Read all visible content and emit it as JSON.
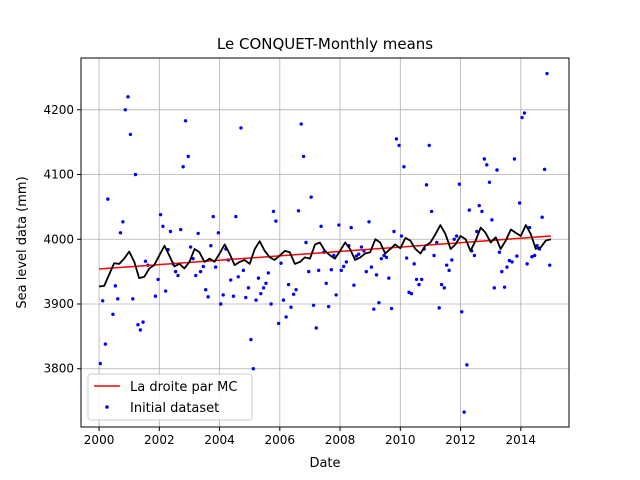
{
  "chart_data": {
    "type": "scatter",
    "title": "Le CONQUET-Monthly means",
    "xlabel": "Date",
    "ylabel": "Sea level data (mm)",
    "xlim": [
      1999.4,
      2015.6
    ],
    "ylim": [
      3710,
      4280
    ],
    "xticks": [
      2000,
      2002,
      2004,
      2006,
      2008,
      2010,
      2012,
      2014
    ],
    "yticks": [
      3800,
      3900,
      4000,
      4100,
      4200
    ],
    "grid": true,
    "legend_position": "lower-left",
    "colors": {
      "points": "#0000ff",
      "trend": "#ff0000",
      "fit": "#000000",
      "grid": "#b0b0b0"
    },
    "series": [
      {
        "name": "Initial dataset",
        "kind": "scatter",
        "points": [
          [
            2000.04,
            3808
          ],
          [
            2000.12,
            3905
          ],
          [
            2000.21,
            3838
          ],
          [
            2000.29,
            4062
          ],
          [
            2000.46,
            3884
          ],
          [
            2000.54,
            3928
          ],
          [
            2000.62,
            3908
          ],
          [
            2000.71,
            4010
          ],
          [
            2000.79,
            4027
          ],
          [
            2000.87,
            4200
          ],
          [
            2000.96,
            4220
          ],
          [
            2001.04,
            4162
          ],
          [
            2001.12,
            3908
          ],
          [
            2001.21,
            4100
          ],
          [
            2001.29,
            3868
          ],
          [
            2001.37,
            3860
          ],
          [
            2001.46,
            3872
          ],
          [
            2001.54,
            3966
          ],
          [
            2001.62,
            3960
          ],
          [
            2001.87,
            3912
          ],
          [
            2001.96,
            3938
          ],
          [
            2002.04,
            4038
          ],
          [
            2002.12,
            4020
          ],
          [
            2002.21,
            3920
          ],
          [
            2002.29,
            3984
          ],
          [
            2002.37,
            4012
          ],
          [
            2002.46,
            3962
          ],
          [
            2002.54,
            3950
          ],
          [
            2002.62,
            3944
          ],
          [
            2002.71,
            4015
          ],
          [
            2002.79,
            4112
          ],
          [
            2002.87,
            4183
          ],
          [
            2002.96,
            4128
          ],
          [
            2003.04,
            3988
          ],
          [
            2003.12,
            3970
          ],
          [
            2003.21,
            3944
          ],
          [
            2003.29,
            4009
          ],
          [
            2003.37,
            3950
          ],
          [
            2003.46,
            3958
          ],
          [
            2003.54,
            3922
          ],
          [
            2003.62,
            3911
          ],
          [
            2003.71,
            3990
          ],
          [
            2003.79,
            4035
          ],
          [
            2003.87,
            3957
          ],
          [
            2003.96,
            4010
          ],
          [
            2004.04,
            3900
          ],
          [
            2004.12,
            3914
          ],
          [
            2004.21,
            3985
          ],
          [
            2004.29,
            3968
          ],
          [
            2004.37,
            3937
          ],
          [
            2004.46,
            3912
          ],
          [
            2004.54,
            4035
          ],
          [
            2004.62,
            3942
          ],
          [
            2004.71,
            4172
          ],
          [
            2004.79,
            3952
          ],
          [
            2004.87,
            3910
          ],
          [
            2004.96,
            3925
          ],
          [
            2005.04,
            3845
          ],
          [
            2005.12,
            3800
          ],
          [
            2005.21,
            3906
          ],
          [
            2005.29,
            3940
          ],
          [
            2005.37,
            3916
          ],
          [
            2005.46,
            3925
          ],
          [
            2005.54,
            3932
          ],
          [
            2005.62,
            3948
          ],
          [
            2005.71,
            3900
          ],
          [
            2005.79,
            4043
          ],
          [
            2005.87,
            4028
          ],
          [
            2005.96,
            3870
          ],
          [
            2006.04,
            3963
          ],
          [
            2006.12,
            3906
          ],
          [
            2006.21,
            3880
          ],
          [
            2006.29,
            3930
          ],
          [
            2006.37,
            3895
          ],
          [
            2006.46,
            3915
          ],
          [
            2006.54,
            3922
          ],
          [
            2006.62,
            4044
          ],
          [
            2006.71,
            4178
          ],
          [
            2006.79,
            4128
          ],
          [
            2006.87,
            3995
          ],
          [
            2006.96,
            3950
          ],
          [
            2007.04,
            4065
          ],
          [
            2007.12,
            3898
          ],
          [
            2007.21,
            3863
          ],
          [
            2007.29,
            3952
          ],
          [
            2007.37,
            4020
          ],
          [
            2007.46,
            3980
          ],
          [
            2007.54,
            3932
          ],
          [
            2007.62,
            3896
          ],
          [
            2007.71,
            3953
          ],
          [
            2007.79,
            3975
          ],
          [
            2007.87,
            3914
          ],
          [
            2007.96,
            4022
          ],
          [
            2008.04,
            3952
          ],
          [
            2008.12,
            3958
          ],
          [
            2008.21,
            3965
          ],
          [
            2008.29,
            3990
          ],
          [
            2008.37,
            4018
          ],
          [
            2008.46,
            3929
          ],
          [
            2008.54,
            3974
          ],
          [
            2008.62,
            3977
          ],
          [
            2008.71,
            3988
          ],
          [
            2008.79,
            3982
          ],
          [
            2008.87,
            3950
          ],
          [
            2008.96,
            4027
          ],
          [
            2009.04,
            3957
          ],
          [
            2009.12,
            3892
          ],
          [
            2009.21,
            3945
          ],
          [
            2009.29,
            3902
          ],
          [
            2009.37,
            3970
          ],
          [
            2009.46,
            3975
          ],
          [
            2009.54,
            3972
          ],
          [
            2009.62,
            3940
          ],
          [
            2009.71,
            3893
          ],
          [
            2009.79,
            4012
          ],
          [
            2009.87,
            4155
          ],
          [
            2009.96,
            4145
          ],
          [
            2010.04,
            4005
          ],
          [
            2010.12,
            4112
          ],
          [
            2010.21,
            3971
          ],
          [
            2010.29,
            3918
          ],
          [
            2010.37,
            3916
          ],
          [
            2010.46,
            3962
          ],
          [
            2010.54,
            3938
          ],
          [
            2010.62,
            3930
          ],
          [
            2010.71,
            3938
          ],
          [
            2010.79,
            3985
          ],
          [
            2010.87,
            4084
          ],
          [
            2010.96,
            4145
          ],
          [
            2011.04,
            4043
          ],
          [
            2011.12,
            3975
          ],
          [
            2011.21,
            3995
          ],
          [
            2011.29,
            3894
          ],
          [
            2011.37,
            3930
          ],
          [
            2011.46,
            3925
          ],
          [
            2011.54,
            3960
          ],
          [
            2011.62,
            3952
          ],
          [
            2011.71,
            3968
          ],
          [
            2011.79,
            4000
          ],
          [
            2011.87,
            4005
          ],
          [
            2011.96,
            4085
          ],
          [
            2012.04,
            3888
          ],
          [
            2012.12,
            3733
          ],
          [
            2012.21,
            3806
          ],
          [
            2012.29,
            4045
          ],
          [
            2012.37,
            3982
          ],
          [
            2012.46,
            3975
          ],
          [
            2012.54,
            4012
          ],
          [
            2012.62,
            4052
          ],
          [
            2012.71,
            4043
          ],
          [
            2012.79,
            4124
          ],
          [
            2012.87,
            4115
          ],
          [
            2012.96,
            4088
          ],
          [
            2013.04,
            4030
          ],
          [
            2013.12,
            3925
          ],
          [
            2013.21,
            4107
          ],
          [
            2013.29,
            3980
          ],
          [
            2013.37,
            3950
          ],
          [
            2013.46,
            3926
          ],
          [
            2013.54,
            3957
          ],
          [
            2013.62,
            3967
          ],
          [
            2013.71,
            3965
          ],
          [
            2013.79,
            4124
          ],
          [
            2013.87,
            3974
          ],
          [
            2013.96,
            4056
          ],
          [
            2014.04,
            4188
          ],
          [
            2014.12,
            4195
          ],
          [
            2014.21,
            3962
          ],
          [
            2014.29,
            4018
          ],
          [
            2014.37,
            3973
          ],
          [
            2014.46,
            3975
          ],
          [
            2014.54,
            3990
          ],
          [
            2014.62,
            3985
          ],
          [
            2014.71,
            4034
          ],
          [
            2014.79,
            4108
          ],
          [
            2014.87,
            4256
          ],
          [
            2014.96,
            3960
          ]
        ]
      },
      {
        "name": "La droite par MC",
        "kind": "line",
        "points": [
          [
            2000.0,
            3954
          ],
          [
            2015.0,
            4005
          ]
        ]
      },
      {
        "name": "",
        "kind": "line",
        "points": [
          [
            2000.0,
            3927
          ],
          [
            2000.17,
            3928
          ],
          [
            2000.33,
            3945
          ],
          [
            2000.5,
            3963
          ],
          [
            2000.67,
            3962
          ],
          [
            2000.83,
            3970
          ],
          [
            2001.0,
            3981
          ],
          [
            2001.17,
            3965
          ],
          [
            2001.33,
            3940
          ],
          [
            2001.5,
            3942
          ],
          [
            2001.67,
            3955
          ],
          [
            2001.83,
            3960
          ],
          [
            2002.0,
            3975
          ],
          [
            2002.17,
            3990
          ],
          [
            2002.33,
            3975
          ],
          [
            2002.5,
            3958
          ],
          [
            2002.67,
            3962
          ],
          [
            2002.83,
            3955
          ],
          [
            2003.0,
            3965
          ],
          [
            2003.17,
            3985
          ],
          [
            2003.33,
            3980
          ],
          [
            2003.5,
            3965
          ],
          [
            2003.67,
            3970
          ],
          [
            2003.83,
            3965
          ],
          [
            2004.0,
            3978
          ],
          [
            2004.17,
            3992
          ],
          [
            2004.33,
            3978
          ],
          [
            2004.5,
            3960
          ],
          [
            2004.67,
            3965
          ],
          [
            2004.83,
            3968
          ],
          [
            2005.0,
            3962
          ],
          [
            2005.17,
            3985
          ],
          [
            2005.33,
            3997
          ],
          [
            2005.5,
            3982
          ],
          [
            2005.67,
            3972
          ],
          [
            2005.83,
            3968
          ],
          [
            2006.0,
            3975
          ],
          [
            2006.17,
            3982
          ],
          [
            2006.33,
            3980
          ],
          [
            2006.5,
            3962
          ],
          [
            2006.67,
            3965
          ],
          [
            2006.83,
            3972
          ],
          [
            2007.0,
            3970
          ],
          [
            2007.17,
            3992
          ],
          [
            2007.33,
            3995
          ],
          [
            2007.5,
            3982
          ],
          [
            2007.67,
            3975
          ],
          [
            2007.83,
            3970
          ],
          [
            2008.0,
            3982
          ],
          [
            2008.17,
            3995
          ],
          [
            2008.33,
            3985
          ],
          [
            2008.5,
            3968
          ],
          [
            2008.67,
            3972
          ],
          [
            2008.83,
            3978
          ],
          [
            2009.0,
            3980
          ],
          [
            2009.17,
            4000
          ],
          [
            2009.33,
            3995
          ],
          [
            2009.5,
            3978
          ],
          [
            2009.67,
            3985
          ],
          [
            2009.83,
            3992
          ],
          [
            2010.0,
            3986
          ],
          [
            2010.17,
            4002
          ],
          [
            2010.33,
            3998
          ],
          [
            2010.5,
            3985
          ],
          [
            2010.67,
            3978
          ],
          [
            2010.83,
            3990
          ],
          [
            2011.0,
            3995
          ],
          [
            2011.17,
            4008
          ],
          [
            2011.33,
            4022
          ],
          [
            2011.5,
            4008
          ],
          [
            2011.67,
            3985
          ],
          [
            2011.83,
            3992
          ],
          [
            2012.0,
            4005
          ],
          [
            2012.17,
            4000
          ],
          [
            2012.33,
            3982
          ],
          [
            2012.5,
            3998
          ],
          [
            2012.67,
            4018
          ],
          [
            2012.83,
            4010
          ],
          [
            2013.0,
            3995
          ],
          [
            2013.17,
            4003
          ],
          [
            2013.33,
            3985
          ],
          [
            2013.5,
            3998
          ],
          [
            2013.67,
            4015
          ],
          [
            2013.83,
            4010
          ],
          [
            2014.0,
            4005
          ],
          [
            2014.17,
            4022
          ],
          [
            2014.33,
            4008
          ],
          [
            2014.5,
            3985
          ],
          [
            2014.67,
            3988
          ],
          [
            2014.83,
            3998
          ],
          [
            2015.0,
            4000
          ]
        ]
      }
    ],
    "legend": [
      {
        "label": "La droite par MC",
        "marker": "line",
        "color": "#ff0000"
      },
      {
        "label": "Initial dataset",
        "marker": "point",
        "color": "#0000ff"
      }
    ]
  }
}
